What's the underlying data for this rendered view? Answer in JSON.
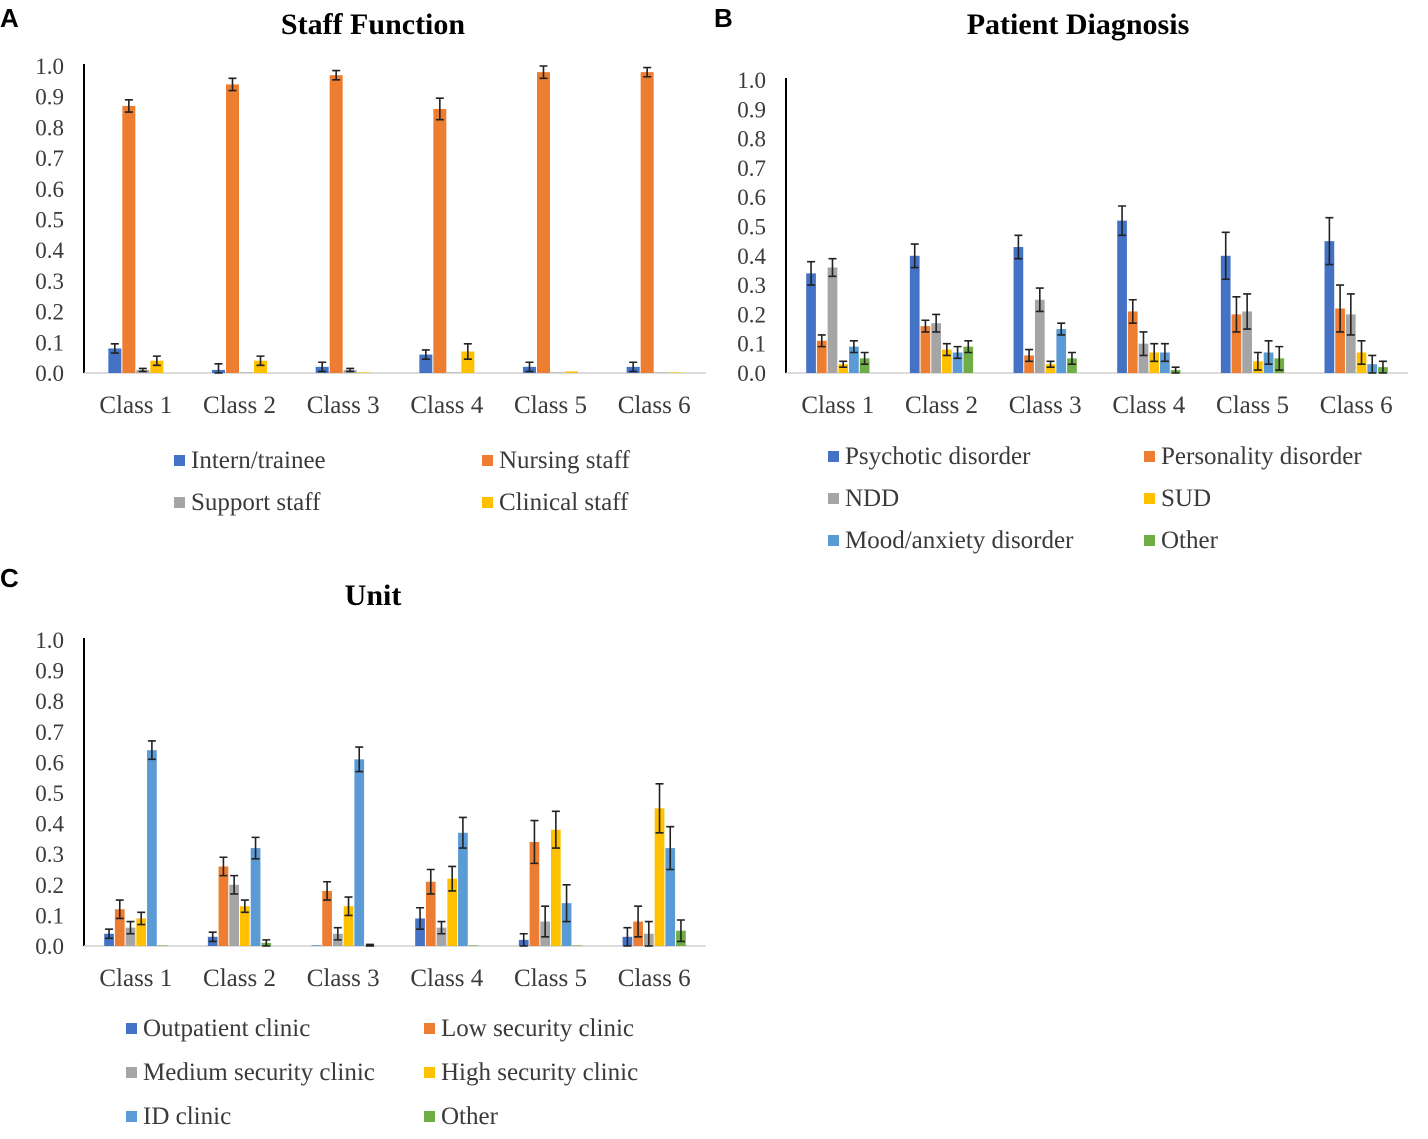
{
  "chart_data": [
    {
      "panel": "A",
      "type": "bar",
      "title": "Staff Function",
      "xlabel": "",
      "ylabel": "",
      "ylim": [
        0,
        1.0
      ],
      "yticks": [
        "0.0",
        "0.1",
        "0.2",
        "0.3",
        "0.4",
        "0.5",
        "0.6",
        "0.7",
        "0.8",
        "0.9",
        "1.0"
      ],
      "categories": [
        "Class 1",
        "Class 2",
        "Class 3",
        "Class 4",
        "Class 5",
        "Class 6"
      ],
      "legend_columns": 2,
      "series": [
        {
          "name": "Intern/trainee",
          "color": "#4472c4",
          "values": [
            0.08,
            0.01,
            0.02,
            0.06,
            0.02,
            0.02
          ],
          "errors": [
            0.015,
            0.02,
            0.015,
            0.015,
            0.015,
            0.015
          ]
        },
        {
          "name": "Nursing staff",
          "color": "#ed7d31",
          "values": [
            0.87,
            0.94,
            0.97,
            0.86,
            0.98,
            0.98
          ],
          "errors": [
            0.02,
            0.02,
            0.015,
            0.035,
            0.02,
            0.015
          ]
        },
        {
          "name": "Support staff",
          "color": "#a5a5a5",
          "values": [
            0.01,
            0.0,
            0.01,
            0.0,
            0.0,
            0.0
          ],
          "errors": [
            0.005,
            0.0,
            0.005,
            0.0,
            0.0,
            0.0
          ]
        },
        {
          "name": "Clinical staff",
          "color": "#ffc000",
          "values": [
            0.04,
            0.04,
            0.0,
            0.07,
            0.005,
            0.0
          ],
          "errors": [
            0.015,
            0.015,
            0.0,
            0.025,
            0.0,
            0.0
          ]
        }
      ]
    },
    {
      "panel": "B",
      "type": "bar",
      "title": "Patient Diagnosis",
      "xlabel": "",
      "ylabel": "",
      "ylim": [
        0,
        1.0
      ],
      "yticks": [
        "0.0",
        "0.1",
        "0.2",
        "0.3",
        "0.4",
        "0.5",
        "0.6",
        "0.7",
        "0.8",
        "0.9",
        "1.0"
      ],
      "categories": [
        "Class 1",
        "Class 2",
        "Class 3",
        "Class 4",
        "Class 5",
        "Class 6"
      ],
      "legend_columns": 2,
      "series": [
        {
          "name": "Psychotic disorder",
          "color": "#4472c4",
          "values": [
            0.34,
            0.4,
            0.43,
            0.52,
            0.4,
            0.45
          ],
          "errors": [
            0.04,
            0.04,
            0.04,
            0.05,
            0.08,
            0.08
          ]
        },
        {
          "name": "Personality disorder",
          "color": "#ed7d31",
          "values": [
            0.11,
            0.16,
            0.06,
            0.21,
            0.2,
            0.22
          ],
          "errors": [
            0.02,
            0.02,
            0.02,
            0.04,
            0.06,
            0.08
          ]
        },
        {
          "name": "NDD",
          "color": "#a5a5a5",
          "values": [
            0.36,
            0.17,
            0.25,
            0.1,
            0.21,
            0.2
          ],
          "errors": [
            0.03,
            0.03,
            0.04,
            0.04,
            0.06,
            0.07
          ]
        },
        {
          "name": "SUD",
          "color": "#ffc000",
          "values": [
            0.03,
            0.08,
            0.03,
            0.07,
            0.04,
            0.07
          ],
          "errors": [
            0.01,
            0.02,
            0.01,
            0.03,
            0.03,
            0.04
          ]
        },
        {
          "name": "Mood/anxiety disorder",
          "color": "#5b9bd5",
          "values": [
            0.09,
            0.07,
            0.15,
            0.07,
            0.07,
            0.03
          ],
          "errors": [
            0.02,
            0.02,
            0.02,
            0.03,
            0.04,
            0.03
          ]
        },
        {
          "name": "Other",
          "color": "#70ad47",
          "values": [
            0.05,
            0.09,
            0.05,
            0.01,
            0.05,
            0.02
          ],
          "errors": [
            0.02,
            0.02,
            0.02,
            0.01,
            0.04,
            0.02
          ]
        }
      ]
    },
    {
      "panel": "C",
      "type": "bar",
      "title": "Unit",
      "xlabel": "",
      "ylabel": "",
      "ylim": [
        0,
        1.0
      ],
      "yticks": [
        "0.0",
        "0.1",
        "0.2",
        "0.3",
        "0.4",
        "0.5",
        "0.6",
        "0.7",
        "0.8",
        "0.9",
        "1.0"
      ],
      "categories": [
        "Class 1",
        "Class 2",
        "Class 3",
        "Class 4",
        "Class 5",
        "Class 6"
      ],
      "legend_columns": 2,
      "series": [
        {
          "name": "Outpatient clinic",
          "color": "#4472c4",
          "values": [
            0.04,
            0.03,
            0.0,
            0.09,
            0.02,
            0.03
          ],
          "errors": [
            0.015,
            0.015,
            0.0,
            0.035,
            0.02,
            0.03
          ]
        },
        {
          "name": "Low security clinic",
          "color": "#ed7d31",
          "values": [
            0.12,
            0.26,
            0.18,
            0.21,
            0.34,
            0.08
          ],
          "errors": [
            0.03,
            0.03,
            0.03,
            0.04,
            0.07,
            0.05
          ]
        },
        {
          "name": "Medium security clinic",
          "color": "#a5a5a5",
          "values": [
            0.06,
            0.2,
            0.04,
            0.06,
            0.08,
            0.04
          ],
          "errors": [
            0.02,
            0.03,
            0.02,
            0.02,
            0.05,
            0.04
          ]
        },
        {
          "name": "High security clinic",
          "color": "#ffc000",
          "values": [
            0.09,
            0.13,
            0.13,
            0.22,
            0.38,
            0.45
          ],
          "errors": [
            0.02,
            0.02,
            0.03,
            0.04,
            0.06,
            0.08
          ]
        },
        {
          "name": "ID clinic",
          "color": "#5b9bd5",
          "values": [
            0.64,
            0.32,
            0.61,
            0.37,
            0.14,
            0.32
          ],
          "errors": [
            0.03,
            0.035,
            0.04,
            0.05,
            0.06,
            0.07
          ]
        },
        {
          "name": "Other",
          "color": "#70ad47",
          "values": [
            0.0,
            0.01,
            0.0,
            0.0,
            0.0,
            0.05
          ],
          "errors": [
            0.0,
            0.01,
            0.005,
            0.0,
            0.0,
            0.035
          ]
        }
      ]
    }
  ]
}
